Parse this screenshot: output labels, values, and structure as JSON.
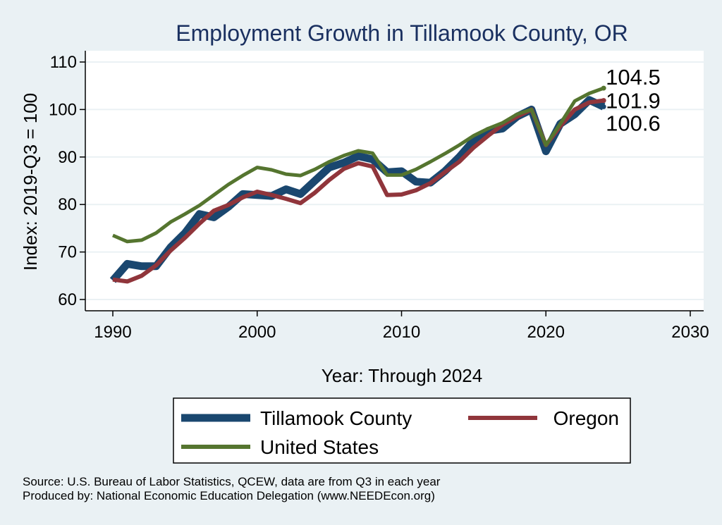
{
  "chart_data": {
    "type": "line",
    "title": "Employment Growth in Tillamook County, OR",
    "xlabel": "Year: Through 2024",
    "ylabel": "Index: 2019-Q3 = 100",
    "xlim": [
      1990,
      2030
    ],
    "ylim": [
      60,
      110
    ],
    "x_ticks": [
      1990,
      2000,
      2010,
      2020,
      2030
    ],
    "y_ticks": [
      60,
      70,
      80,
      90,
      100,
      110
    ],
    "grid": true,
    "legend_position": "bottom",
    "x": [
      1990,
      1991,
      1992,
      1993,
      1994,
      1995,
      1996,
      1997,
      1998,
      1999,
      2000,
      2001,
      2002,
      2003,
      2004,
      2005,
      2006,
      2007,
      2008,
      2009,
      2010,
      2011,
      2012,
      2013,
      2014,
      2015,
      2016,
      2017,
      2018,
      2019,
      2020,
      2021,
      2022,
      2023,
      2024
    ],
    "series": [
      {
        "name": "Tillamook  County",
        "color": "#1a476f",
        "values": [
          64.0,
          67.5,
          67.0,
          67.0,
          71.0,
          74.0,
          78.0,
          77.3,
          79.5,
          82.2,
          82.0,
          81.8,
          83.2,
          82.2,
          85.0,
          87.8,
          88.8,
          90.2,
          89.5,
          86.8,
          87.0,
          84.8,
          84.6,
          87.0,
          90.0,
          93.5,
          95.5,
          96.0,
          98.5,
          100.0,
          91.2,
          97.0,
          99.0,
          102.0,
          100.6
        ],
        "end_label": "100.6"
      },
      {
        "name": "Oregon",
        "color": "#90353b",
        "values": [
          64.2,
          63.8,
          65.0,
          67.2,
          70.3,
          73.0,
          76.0,
          78.7,
          79.9,
          81.5,
          82.7,
          82.0,
          81.2,
          80.3,
          82.5,
          85.2,
          87.5,
          88.7,
          88.0,
          82.0,
          82.1,
          83.0,
          84.5,
          86.8,
          89.0,
          92.0,
          94.5,
          96.8,
          98.5,
          100.0,
          92.5,
          96.5,
          100.0,
          101.5,
          101.9
        ],
        "end_label": "101.9"
      },
      {
        "name": "United States",
        "color": "#55752f",
        "values": [
          73.5,
          72.2,
          72.5,
          74.0,
          76.3,
          78.0,
          79.8,
          82.0,
          84.2,
          86.1,
          87.8,
          87.3,
          86.4,
          86.1,
          87.4,
          89.0,
          90.3,
          91.3,
          90.8,
          86.2,
          86.2,
          87.4,
          89.0,
          90.7,
          92.5,
          94.5,
          96.0,
          97.2,
          99.0,
          100.0,
          92.5,
          97.0,
          101.8,
          103.4,
          104.5
        ],
        "end_label": "104.5"
      }
    ]
  },
  "footer": {
    "source": "Source: U.S. Bureau of Labor Statistics, QCEW, data are from Q3 in each year",
    "produced_by": "Produced by: National Economic Education Delegation (www.NEEDEcon.org)"
  },
  "colors": {
    "background": "#eaf1f4",
    "plot_background": "#ffffff",
    "title": "#1a3060",
    "grid": "#eaf1f4"
  }
}
